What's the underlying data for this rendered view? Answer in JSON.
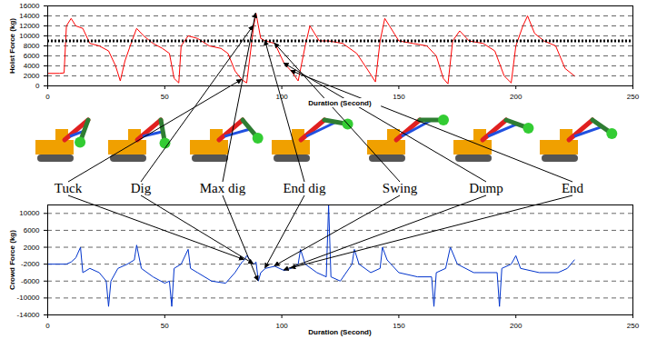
{
  "chart_data": [
    {
      "type": "line",
      "ylabel": "Hoist Force (kg)",
      "xlabel": "Duration (Second)",
      "color": "#ff0000",
      "x": [
        0,
        5,
        7,
        8,
        10,
        12,
        15,
        18,
        22,
        26,
        29,
        31,
        33,
        36,
        38,
        41,
        45,
        49,
        52,
        54,
        56,
        57,
        60,
        64,
        69,
        74,
        77,
        80,
        83,
        85,
        88,
        89,
        91,
        93,
        97,
        101,
        104,
        107,
        110,
        112,
        116,
        120,
        126,
        132,
        137,
        140,
        142,
        144,
        146,
        150,
        156,
        162,
        166,
        169,
        171,
        173,
        176,
        180,
        186,
        191,
        195,
        198,
        200,
        203,
        205,
        208,
        212,
        217,
        221,
        225
      ],
      "values": [
        2500,
        2500,
        2600,
        12000,
        13500,
        12000,
        11500,
        8500,
        8000,
        7000,
        4000,
        1000,
        5000,
        9000,
        11500,
        10000,
        8500,
        7500,
        6500,
        1500,
        600,
        8000,
        10000,
        9500,
        8000,
        7500,
        6500,
        3000,
        1200,
        600,
        12000,
        14500,
        9500,
        9000,
        8500,
        4500,
        3000,
        1000,
        8000,
        12000,
        9000,
        9000,
        8500,
        6500,
        3000,
        800,
        9000,
        13500,
        12000,
        9000,
        8500,
        8000,
        6000,
        1500,
        400,
        9000,
        11000,
        9000,
        8500,
        7000,
        2000,
        600,
        8000,
        12000,
        14000,
        10500,
        9000,
        8000,
        3500,
        2000
      ],
      "hline": 9000,
      "xlim": [
        0,
        250
      ],
      "xticks": [
        0,
        50,
        100,
        150,
        200,
        250
      ],
      "ylim": [
        0,
        16000
      ],
      "yticks": [
        0,
        2000,
        4000,
        6000,
        8000,
        10000,
        12000,
        14000,
        16000
      ],
      "grid": true
    },
    {
      "type": "line",
      "ylabel": "Crowd Force (kg)",
      "xlabel": "Duration (Second)",
      "color": "#0033cc",
      "x": [
        0,
        8,
        10,
        12,
        14,
        15,
        18,
        22,
        25,
        26,
        27,
        30,
        34,
        37,
        38,
        40,
        45,
        50,
        52,
        53,
        54,
        57,
        60,
        61,
        64,
        70,
        76,
        80,
        83,
        84,
        85,
        88,
        89,
        90,
        91,
        93,
        97,
        101,
        104,
        107,
        108,
        110,
        115,
        119,
        120,
        121,
        125,
        130,
        131,
        133,
        138,
        142,
        143,
        145,
        150,
        158,
        164,
        165,
        166,
        170,
        172,
        175,
        182,
        190,
        192,
        193,
        194,
        198,
        200,
        202,
        210,
        218,
        222,
        225
      ],
      "values": [
        -2000,
        -2000,
        -1500,
        -500,
        2000,
        -4000,
        -3000,
        -4000,
        -6000,
        -12000,
        -6000,
        -3000,
        -2000,
        -1000,
        2500,
        -3000,
        -5000,
        -6500,
        -6000,
        -12000,
        -3000,
        -2000,
        1500,
        -3000,
        -4000,
        -6000,
        -6500,
        -4000,
        -1500,
        -1000,
        0,
        -2000,
        -1500,
        -6000,
        -4000,
        -3000,
        -2500,
        -3500,
        -3000,
        -2000,
        1500,
        -2000,
        -4000,
        -5000,
        12000,
        -5000,
        -6000,
        -2000,
        1500,
        -2000,
        -4000,
        -3000,
        2000,
        -1000,
        -4000,
        -5000,
        -5000,
        -12000,
        -4000,
        -3000,
        2000,
        -2000,
        -4000,
        -4000,
        -4000,
        -12000,
        -3000,
        -2000,
        0,
        -3000,
        -4000,
        -4000,
        -3000,
        -1000
      ],
      "xlim": [
        0,
        250
      ],
      "xticks": [
        0,
        50,
        100,
        150,
        200,
        250
      ],
      "ylim": [
        -14000,
        12000
      ],
      "yticks": [
        -14000,
        -10000,
        -6000,
        -2000,
        2000,
        6000,
        10000
      ],
      "grid": true
    }
  ],
  "phases": [
    {
      "label": "Tuck",
      "hoist_x": 83,
      "crowd_x": 84
    },
    {
      "label": "Dig",
      "hoist_x": 88,
      "crowd_x": 88
    },
    {
      "label": "Max dig",
      "hoist_x": 89,
      "crowd_x": 90
    },
    {
      "label": "End dig",
      "hoist_x": 93,
      "crowd_x": 93
    },
    {
      "label": "Swing",
      "hoist_x": 97,
      "crowd_x": 97
    },
    {
      "label": "Dump",
      "hoist_x": 101,
      "crowd_x": 101
    },
    {
      "label": "End",
      "hoist_x": 104,
      "crowd_x": 104
    }
  ]
}
